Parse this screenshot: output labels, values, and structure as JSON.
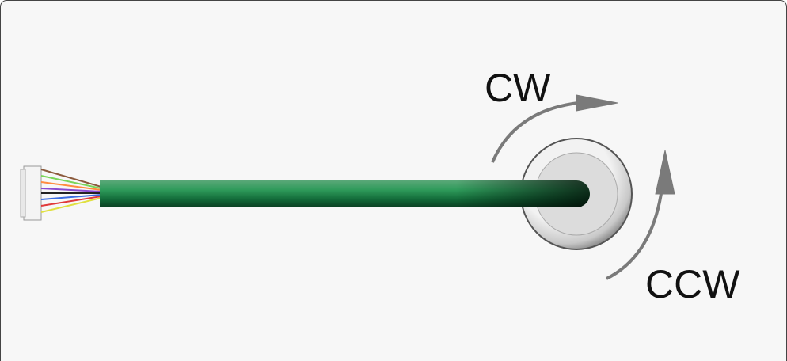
{
  "labels": {
    "cw": "CW",
    "ccw": "CCW"
  }
}
